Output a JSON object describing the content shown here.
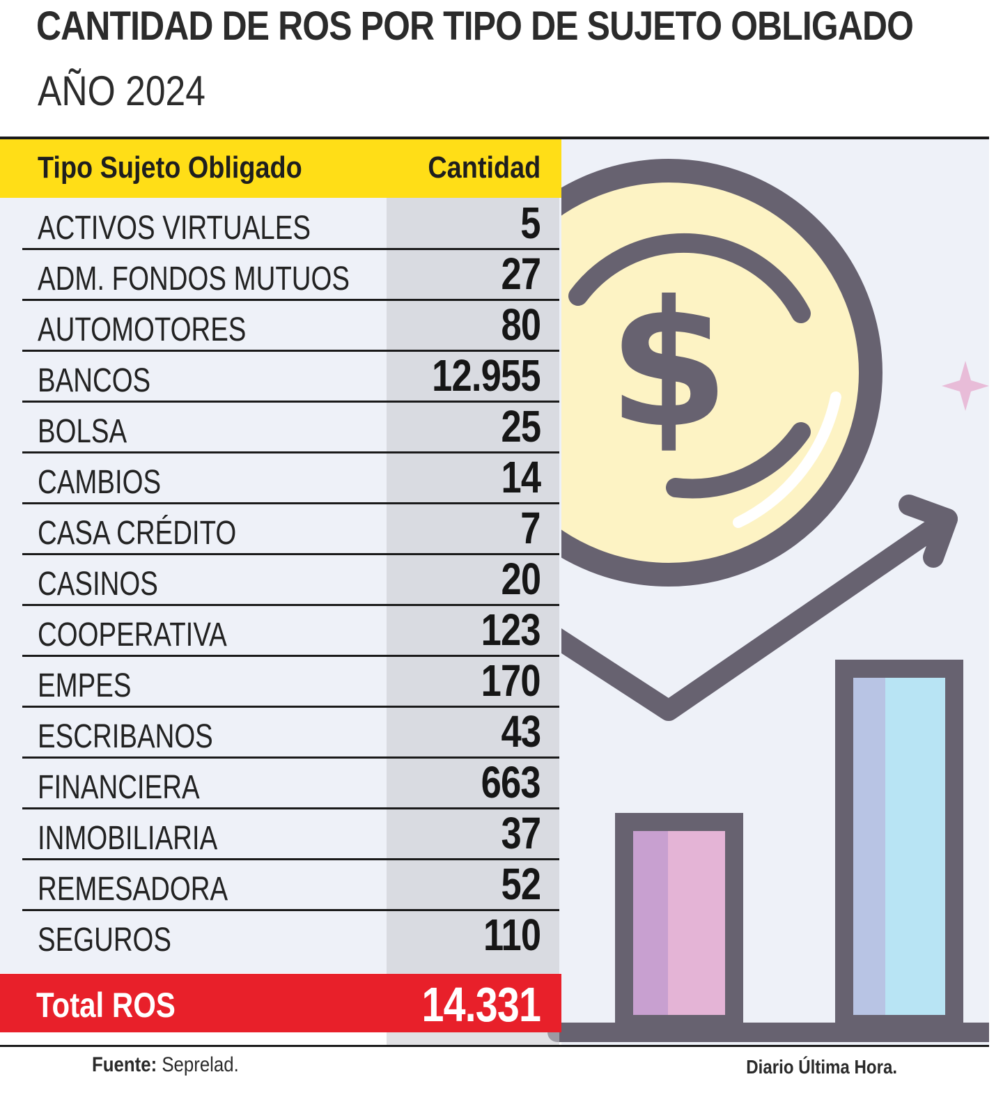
{
  "header": {
    "title": "CANTIDAD DE ROS POR TIPO DE SUJETO OBLIGADO",
    "subtitle": "AÑO 2024"
  },
  "table": {
    "col_name": "Tipo Sujeto Obligado",
    "col_qty": "Cantidad",
    "rows": [
      {
        "name": "ACTIVOS VIRTUALES",
        "qty": "5"
      },
      {
        "name": "ADM. FONDOS MUTUOS",
        "qty": "27"
      },
      {
        "name": "AUTOMOTORES",
        "qty": "80"
      },
      {
        "name": "BANCOS",
        "qty": "12.955"
      },
      {
        "name": "BOLSA",
        "qty": "25"
      },
      {
        "name": "CAMBIOS",
        "qty": "14"
      },
      {
        "name": "CASA CRÉDITO",
        "qty": "7"
      },
      {
        "name": "CASINOS",
        "qty": "20"
      },
      {
        "name": "COOPERATIVA",
        "qty": "123"
      },
      {
        "name": "EMPES",
        "qty": "170"
      },
      {
        "name": "ESCRIBANOS",
        "qty": "43"
      },
      {
        "name": "FINANCIERA",
        "qty": "663"
      },
      {
        "name": "INMOBILIARIA",
        "qty": "37"
      },
      {
        "name": "REMESADORA",
        "qty": "52"
      },
      {
        "name": "SEGUROS",
        "qty": "110"
      }
    ],
    "total_label": "Total ROS",
    "total_value": "14.331"
  },
  "footer": {
    "source_label": "Fuente:",
    "source_value": "Seprelad.",
    "credit": "Diario Última Hora."
  },
  "colors": {
    "header_yellow": "#ffde17",
    "total_red": "#e8202a",
    "illustration_bg": "#eef1f8"
  },
  "chart_data": {
    "type": "table",
    "title": "CANTIDAD DE ROS POR TIPO DE SUJETO OBLIGADO",
    "subtitle": "AÑO 2024",
    "columns": [
      "Tipo Sujeto Obligado",
      "Cantidad"
    ],
    "categories": [
      "ACTIVOS VIRTUALES",
      "ADM. FONDOS MUTUOS",
      "AUTOMOTORES",
      "BANCOS",
      "BOLSA",
      "CAMBIOS",
      "CASA CRÉDITO",
      "CASINOS",
      "COOPERATIVA",
      "EMPES",
      "ESCRIBANOS",
      "FINANCIERA",
      "INMOBILIARIA",
      "REMESADORA",
      "SEGUROS"
    ],
    "values": [
      5,
      27,
      80,
      12955,
      25,
      14,
      7,
      20,
      123,
      170,
      43,
      663,
      37,
      52,
      110
    ],
    "total": 14331
  }
}
